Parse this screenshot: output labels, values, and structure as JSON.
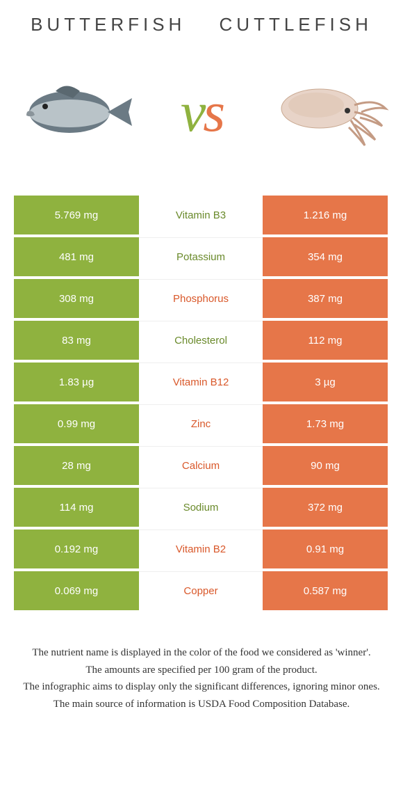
{
  "left_food": "Butterfish",
  "right_food": "Cuttlefish",
  "colors": {
    "left": "#8fb23f",
    "right": "#e67649",
    "left_text": "#6a8a2b",
    "right_text": "#d9582a"
  },
  "rows": [
    {
      "left": "5.769 mg",
      "nutrient": "Vitamin B3",
      "right": "1.216 mg",
      "winner": "left"
    },
    {
      "left": "481 mg",
      "nutrient": "Potassium",
      "right": "354 mg",
      "winner": "left"
    },
    {
      "left": "308 mg",
      "nutrient": "Phosphorus",
      "right": "387 mg",
      "winner": "right"
    },
    {
      "left": "83 mg",
      "nutrient": "Cholesterol",
      "right": "112 mg",
      "winner": "left"
    },
    {
      "left": "1.83 µg",
      "nutrient": "Vitamin B12",
      "right": "3 µg",
      "winner": "right"
    },
    {
      "left": "0.99 mg",
      "nutrient": "Zinc",
      "right": "1.73 mg",
      "winner": "right"
    },
    {
      "left": "28 mg",
      "nutrient": "Calcium",
      "right": "90 mg",
      "winner": "right"
    },
    {
      "left": "114 mg",
      "nutrient": "Sodium",
      "right": "372 mg",
      "winner": "left"
    },
    {
      "left": "0.192 mg",
      "nutrient": "Vitamin B2",
      "right": "0.91 mg",
      "winner": "right"
    },
    {
      "left": "0.069 mg",
      "nutrient": "Copper",
      "right": "0.587 mg",
      "winner": "right"
    }
  ],
  "footer": [
    "The nutrient name is displayed in the color of the food we considered as 'winner'.",
    "The amounts are specified per 100 gram of the product.",
    "The infographic aims to display only the significant differences, ignoring minor ones.",
    "The main source of information is USDA Food Composition Database."
  ]
}
